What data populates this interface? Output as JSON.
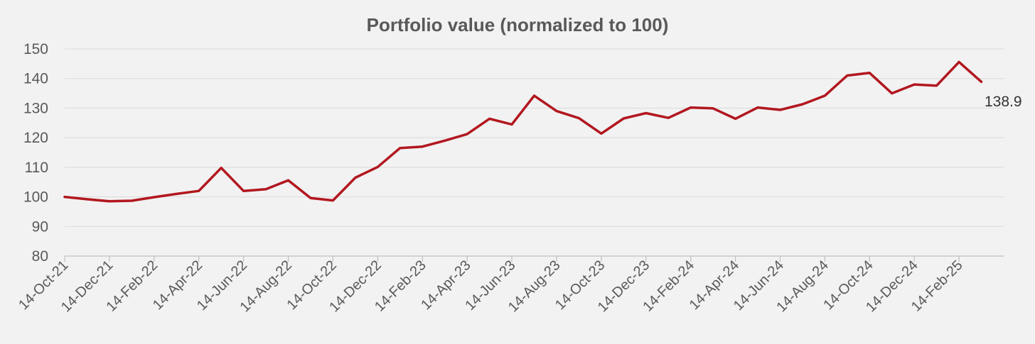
{
  "chart_data": {
    "type": "line",
    "title": "Portfolio value (normalized to 100)",
    "xlabel": "",
    "ylabel": "",
    "ylim": [
      80,
      150
    ],
    "yticks": [
      80,
      90,
      100,
      110,
      120,
      130,
      140,
      150
    ],
    "xtick_labels": [
      "14-Oct-21",
      "14-Dec-21",
      "14-Feb-22",
      "14-Apr-22",
      "14-Jun-22",
      "14-Aug-22",
      "14-Oct-22",
      "14-Dec-22",
      "14-Feb-23",
      "14-Apr-23",
      "14-Jun-23",
      "14-Aug-23",
      "14-Oct-23",
      "14-Dec-23",
      "14-Feb-24",
      "14-Apr-24",
      "14-Jun-24",
      "14-Aug-24",
      "14-Oct-24",
      "14-Dec-24",
      "14-Feb-25"
    ],
    "grid": true,
    "legend": "none",
    "line_color": "#b2171f",
    "end_label": "138.9",
    "x": [
      "14-Oct-21",
      "14-Nov-21",
      "14-Dec-21",
      "14-Jan-22",
      "14-Feb-22",
      "14-Mar-22",
      "14-Apr-22",
      "14-May-22",
      "14-Jun-22",
      "14-Jul-22",
      "14-Aug-22",
      "14-Sep-22",
      "14-Oct-22",
      "14-Nov-22",
      "14-Dec-22",
      "14-Jan-23",
      "14-Feb-23",
      "14-Mar-23",
      "14-Apr-23",
      "14-May-23",
      "14-Jun-23",
      "14-Jul-23",
      "14-Aug-23",
      "14-Sep-23",
      "14-Oct-23",
      "14-Nov-23",
      "14-Dec-23",
      "14-Jan-24",
      "14-Feb-24",
      "14-Mar-24",
      "14-Apr-24",
      "14-May-24",
      "14-Jun-24",
      "14-Jul-24",
      "14-Aug-24",
      "14-Sep-24",
      "14-Oct-24",
      "14-Nov-24",
      "14-Dec-24",
      "14-Jan-25",
      "14-Feb-25",
      "14-Mar-25"
    ],
    "series": [
      {
        "values": [
          100.0,
          99.2,
          98.5,
          98.7,
          99.9,
          101.0,
          102.0,
          109.8,
          102.0,
          102.6,
          105.6,
          99.6,
          98.8,
          106.5,
          110.1,
          116.5,
          117.0,
          119.0,
          121.2,
          126.4,
          124.5,
          134.2,
          129.0,
          126.6,
          121.4,
          126.5,
          128.3,
          126.7,
          130.2,
          129.9,
          126.4,
          130.2,
          129.4,
          131.3,
          134.2,
          141.0,
          141.9,
          135.0,
          138.0,
          137.6,
          145.6,
          138.9
        ]
      }
    ]
  }
}
